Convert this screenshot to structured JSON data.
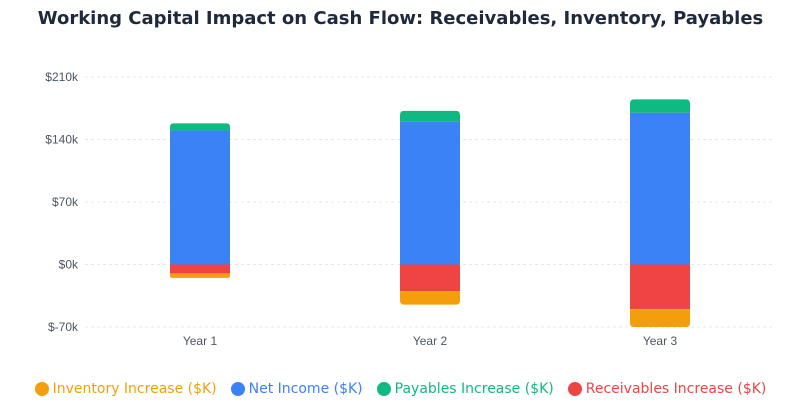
{
  "chart_data": {
    "type": "bar",
    "stacked": true,
    "title": "Working Capital Impact on Cash Flow: Receivables, Inventory, Payables",
    "xlabel": "",
    "ylabel": "",
    "categories": [
      "Year 1",
      "Year 2",
      "Year 3"
    ],
    "ylim": [
      -70000,
      210000
    ],
    "yticks": [
      -70000,
      0,
      70000,
      140000,
      210000
    ],
    "ytick_labels": [
      "$-70k",
      "$0k",
      "$70k",
      "$140k",
      "$210k"
    ],
    "grid": true,
    "legend_position": "bottom",
    "series": [
      {
        "name": "Inventory Increase ($K)",
        "color": "#f59e0b",
        "values": [
          -5000,
          -15000,
          -20000
        ]
      },
      {
        "name": "Net Income ($K)",
        "color": "#3b82f6",
        "values": [
          150000,
          160000,
          170000
        ]
      },
      {
        "name": "Payables Increase ($K)",
        "color": "#10b981",
        "values": [
          8000,
          12000,
          15000
        ]
      },
      {
        "name": "Receivables Increase ($K)",
        "color": "#ef4444",
        "values": [
          -10000,
          -30000,
          -50000
        ]
      }
    ]
  }
}
